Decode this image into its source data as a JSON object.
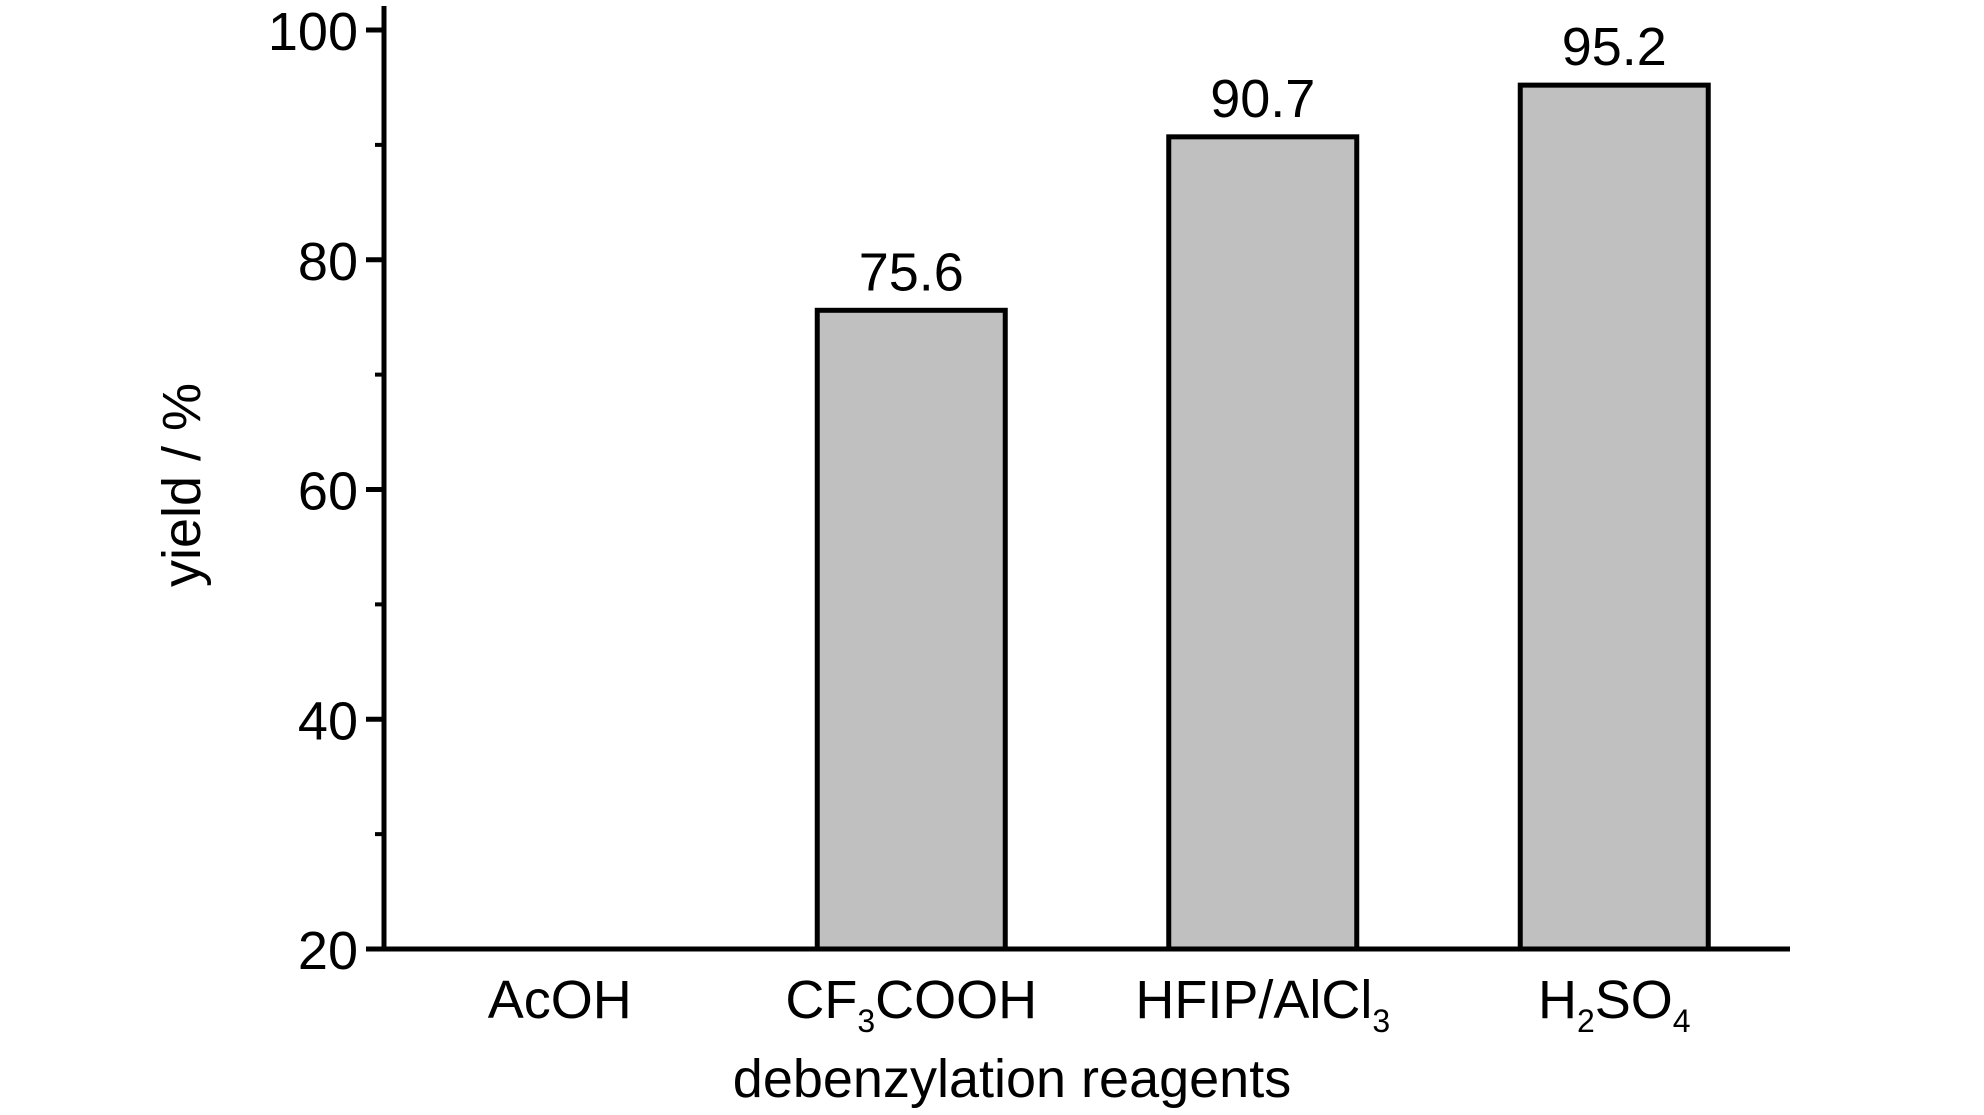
{
  "chart_data": {
    "type": "bar",
    "title": "",
    "xlabel": "debenzylation reagents",
    "ylabel": "yield / %",
    "categories": [
      {
        "base": "AcOH",
        "sub": "",
        "suffix": ""
      },
      {
        "base": "CF",
        "sub": "3",
        "suffix": "COOH"
      },
      {
        "base": "HFIP/AlCl",
        "sub": "3",
        "suffix": ""
      },
      {
        "base": "H",
        "sub": "2",
        "suffix": "SO",
        "sub2": "4"
      }
    ],
    "category_labels": [
      "AcOH",
      "CF3COOH",
      "HFIP/AlCl3",
      "H2SO4"
    ],
    "values": [
      20,
      75.6,
      90.7,
      95.2
    ],
    "value_labels": [
      "",
      "75.6",
      "90.7",
      "95.2"
    ],
    "ylim": [
      20,
      100
    ],
    "yticks": [
      "20",
      "40",
      "60",
      "80",
      "100"
    ],
    "ytick_values": [
      20,
      40,
      60,
      80,
      100
    ],
    "yminor_tick_values": [
      30,
      50,
      70,
      90
    ],
    "grid": false,
    "legend": "none",
    "colors": {
      "bar_fill": "#c0c0c0",
      "bar_stroke": "#000000",
      "axis": "#000000"
    }
  }
}
